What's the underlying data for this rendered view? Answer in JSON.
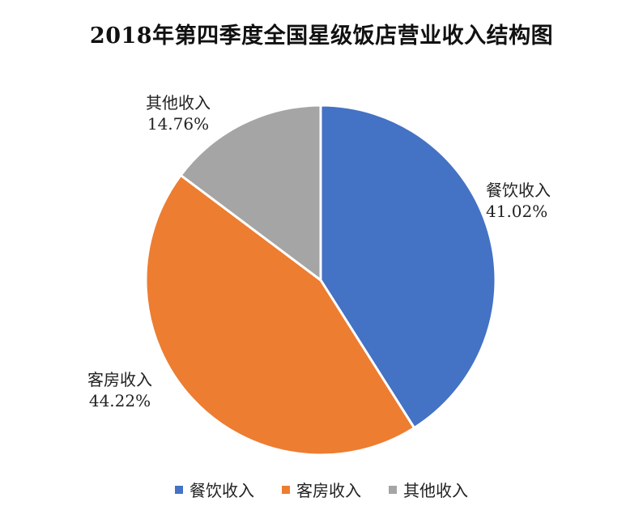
{
  "chart_data": {
    "type": "pie",
    "title": "2018年第四季度全国星级饭店营业收入结构图",
    "slices": [
      {
        "name": "餐饮收入",
        "value": 41.02,
        "label": "41.02%",
        "color": "#4472C4"
      },
      {
        "name": "客房收入",
        "value": 44.22,
        "label": "44.22%",
        "color": "#ED7D31"
      },
      {
        "name": "其他收入",
        "value": 14.76,
        "label": "14.76%",
        "color": "#A5A5A5"
      }
    ],
    "start_angle_deg": 0,
    "direction": "clockwise",
    "legend_position": "bottom"
  }
}
